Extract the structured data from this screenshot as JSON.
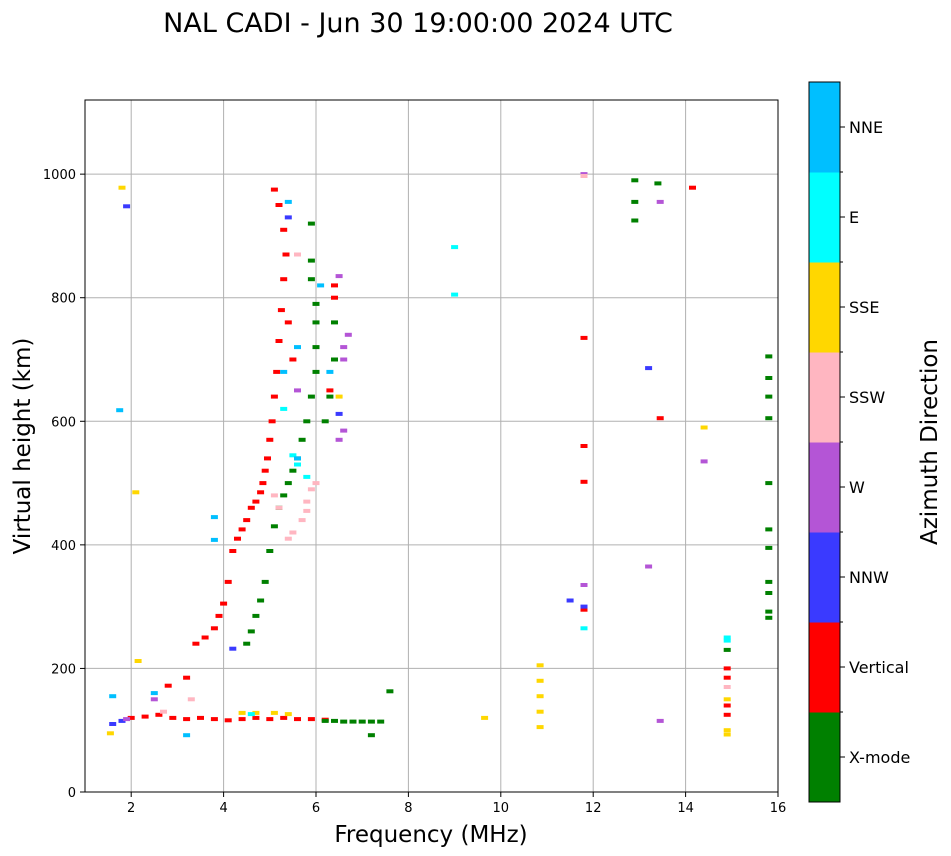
{
  "chart_data": {
    "type": "scatter",
    "title": "NAL CADI - Jun 30 19:00:00 2024 UTC",
    "xlabel": "Frequency (MHz)",
    "ylabel": "Virtual height (km)",
    "xlim": [
      1,
      16
    ],
    "ylim": [
      0,
      1120
    ],
    "xticks": [
      2,
      4,
      6,
      8,
      10,
      12,
      14,
      16
    ],
    "yticks": [
      0,
      200,
      400,
      600,
      800,
      1000
    ],
    "grid": true,
    "colorbar": {
      "label": "Azimuth Direction",
      "categories": [
        {
          "name": "X-mode",
          "color": "#008000"
        },
        {
          "name": "Vertical",
          "color": "#ff0000"
        },
        {
          "name": "NNW",
          "color": "#3a3aff"
        },
        {
          "name": "W",
          "color": "#b455d6"
        },
        {
          "name": "SSW",
          "color": "#ffb6c1"
        },
        {
          "name": "SSE",
          "color": "#ffd700"
        },
        {
          "name": "E",
          "color": "#00ffff"
        },
        {
          "name": "NNE",
          "color": "#00bfff"
        }
      ]
    },
    "series": [
      {
        "name": "Vertical",
        "color": "#ff0000",
        "points": [
          [
            2.0,
            120
          ],
          [
            2.3,
            122
          ],
          [
            2.6,
            125
          ],
          [
            2.9,
            120
          ],
          [
            3.2,
            118
          ],
          [
            3.5,
            120
          ],
          [
            3.8,
            118
          ],
          [
            4.1,
            116
          ],
          [
            4.4,
            118
          ],
          [
            4.7,
            120
          ],
          [
            5.0,
            118
          ],
          [
            5.3,
            120
          ],
          [
            5.6,
            118
          ],
          [
            5.9,
            118
          ],
          [
            6.2,
            117
          ],
          [
            3.2,
            185
          ],
          [
            2.8,
            172
          ],
          [
            3.4,
            240
          ],
          [
            3.6,
            250
          ],
          [
            3.8,
            265
          ],
          [
            3.9,
            285
          ],
          [
            4.0,
            305
          ],
          [
            4.1,
            340
          ],
          [
            4.2,
            390
          ],
          [
            4.3,
            410
          ],
          [
            4.4,
            425
          ],
          [
            4.5,
            440
          ],
          [
            4.6,
            460
          ],
          [
            4.7,
            470
          ],
          [
            4.8,
            485
          ],
          [
            4.85,
            500
          ],
          [
            4.9,
            520
          ],
          [
            4.95,
            540
          ],
          [
            5.0,
            570
          ],
          [
            5.05,
            600
          ],
          [
            5.1,
            640
          ],
          [
            5.15,
            680
          ],
          [
            5.2,
            730
          ],
          [
            5.25,
            780
          ],
          [
            5.3,
            830
          ],
          [
            5.35,
            870
          ],
          [
            5.3,
            910
          ],
          [
            5.2,
            950
          ],
          [
            5.1,
            975
          ],
          [
            5.4,
            760
          ],
          [
            5.5,
            700
          ],
          [
            6.4,
            820
          ],
          [
            6.4,
            800
          ],
          [
            6.3,
            650
          ],
          [
            11.8,
            735
          ],
          [
            11.8,
            560
          ],
          [
            11.8,
            502
          ],
          [
            11.8,
            295
          ],
          [
            13.45,
            605
          ],
          [
            14.15,
            978
          ],
          [
            14.9,
            200
          ],
          [
            14.9,
            185
          ],
          [
            14.9,
            140
          ],
          [
            14.9,
            125
          ]
        ]
      },
      {
        "name": "X-mode",
        "color": "#008000",
        "points": [
          [
            6.2,
            115
          ],
          [
            6.4,
            115
          ],
          [
            6.6,
            114
          ],
          [
            6.8,
            114
          ],
          [
            7.0,
            114
          ],
          [
            7.2,
            114
          ],
          [
            7.4,
            114
          ],
          [
            7.2,
            92
          ],
          [
            7.6,
            163
          ],
          [
            4.5,
            240
          ],
          [
            4.6,
            260
          ],
          [
            4.7,
            285
          ],
          [
            4.8,
            310
          ],
          [
            4.9,
            340
          ],
          [
            5.0,
            390
          ],
          [
            5.1,
            430
          ],
          [
            5.2,
            460
          ],
          [
            5.3,
            480
          ],
          [
            5.4,
            500
          ],
          [
            5.5,
            520
          ],
          [
            5.6,
            540
          ],
          [
            5.7,
            570
          ],
          [
            5.8,
            600
          ],
          [
            5.9,
            640
          ],
          [
            6.0,
            680
          ],
          [
            6.0,
            720
          ],
          [
            6.0,
            760
          ],
          [
            6.0,
            790
          ],
          [
            5.9,
            830
          ],
          [
            5.9,
            860
          ],
          [
            5.9,
            920
          ],
          [
            6.2,
            600
          ],
          [
            6.3,
            640
          ],
          [
            6.4,
            760
          ],
          [
            6.4,
            700
          ],
          [
            12.9,
            990
          ],
          [
            12.9,
            955
          ],
          [
            12.9,
            925
          ],
          [
            13.4,
            985
          ],
          [
            15.8,
            705
          ],
          [
            15.8,
            670
          ],
          [
            15.8,
            640
          ],
          [
            15.8,
            605
          ],
          [
            15.8,
            500
          ],
          [
            15.8,
            425
          ],
          [
            15.8,
            395
          ],
          [
            15.8,
            340
          ],
          [
            15.8,
            322
          ],
          [
            15.8,
            292
          ],
          [
            15.8,
            282
          ],
          [
            14.9,
            230
          ]
        ]
      },
      {
        "name": "NNW",
        "color": "#3a3aff",
        "points": [
          [
            1.6,
            110
          ],
          [
            1.8,
            115
          ],
          [
            1.9,
            948
          ],
          [
            4.2,
            232
          ],
          [
            5.4,
            930
          ],
          [
            6.5,
            612
          ],
          [
            11.5,
            310
          ],
          [
            11.8,
            300
          ],
          [
            13.2,
            686
          ]
        ]
      },
      {
        "name": "W",
        "color": "#b455d6",
        "points": [
          [
            1.9,
            118
          ],
          [
            2.5,
            150
          ],
          [
            5.6,
            650
          ],
          [
            6.5,
            835
          ],
          [
            6.7,
            740
          ],
          [
            6.6,
            720
          ],
          [
            6.6,
            700
          ],
          [
            6.5,
            570
          ],
          [
            6.6,
            585
          ],
          [
            11.8,
            1000
          ],
          [
            11.8,
            335
          ],
          [
            13.2,
            365
          ],
          [
            13.45,
            955
          ],
          [
            13.45,
            115
          ],
          [
            14.4,
            535
          ]
        ]
      },
      {
        "name": "SSW",
        "color": "#ffb6c1",
        "points": [
          [
            2.7,
            130
          ],
          [
            3.3,
            150
          ],
          [
            5.1,
            480
          ],
          [
            5.2,
            460
          ],
          [
            5.8,
            470
          ],
          [
            5.9,
            490
          ],
          [
            5.8,
            455
          ],
          [
            5.7,
            440
          ],
          [
            5.5,
            420
          ],
          [
            5.4,
            410
          ],
          [
            5.6,
            870
          ],
          [
            6.0,
            500
          ],
          [
            11.8,
            997
          ],
          [
            14.9,
            170
          ]
        ]
      },
      {
        "name": "SSE",
        "color": "#ffd700",
        "points": [
          [
            1.55,
            95
          ],
          [
            1.8,
            978
          ],
          [
            2.1,
            485
          ],
          [
            2.15,
            212
          ],
          [
            4.4,
            128
          ],
          [
            4.7,
            128
          ],
          [
            5.1,
            128
          ],
          [
            5.4,
            126
          ],
          [
            6.5,
            640
          ],
          [
            9.65,
            120
          ],
          [
            10.85,
            205
          ],
          [
            10.85,
            180
          ],
          [
            10.85,
            155
          ],
          [
            10.85,
            130
          ],
          [
            10.85,
            105
          ],
          [
            14.4,
            590
          ],
          [
            14.9,
            150
          ],
          [
            14.9,
            100
          ],
          [
            14.9,
            93
          ]
        ]
      },
      {
        "name": "E",
        "color": "#00ffff",
        "points": [
          [
            4.6,
            126
          ],
          [
            5.3,
            620
          ],
          [
            5.5,
            545
          ],
          [
            5.6,
            530
          ],
          [
            5.8,
            510
          ],
          [
            9.0,
            882
          ],
          [
            9.0,
            805
          ],
          [
            14.9,
            250
          ],
          [
            14.9,
            245
          ],
          [
            11.8,
            265
          ]
        ]
      },
      {
        "name": "NNE",
        "color": "#00bfff",
        "points": [
          [
            1.6,
            155
          ],
          [
            1.75,
            618
          ],
          [
            2.5,
            160
          ],
          [
            3.2,
            92
          ],
          [
            3.8,
            445
          ],
          [
            3.8,
            408
          ],
          [
            5.4,
            955
          ],
          [
            5.3,
            680
          ],
          [
            5.6,
            720
          ],
          [
            6.1,
            820
          ],
          [
            6.3,
            680
          ],
          [
            5.6,
            540
          ]
        ]
      }
    ]
  }
}
